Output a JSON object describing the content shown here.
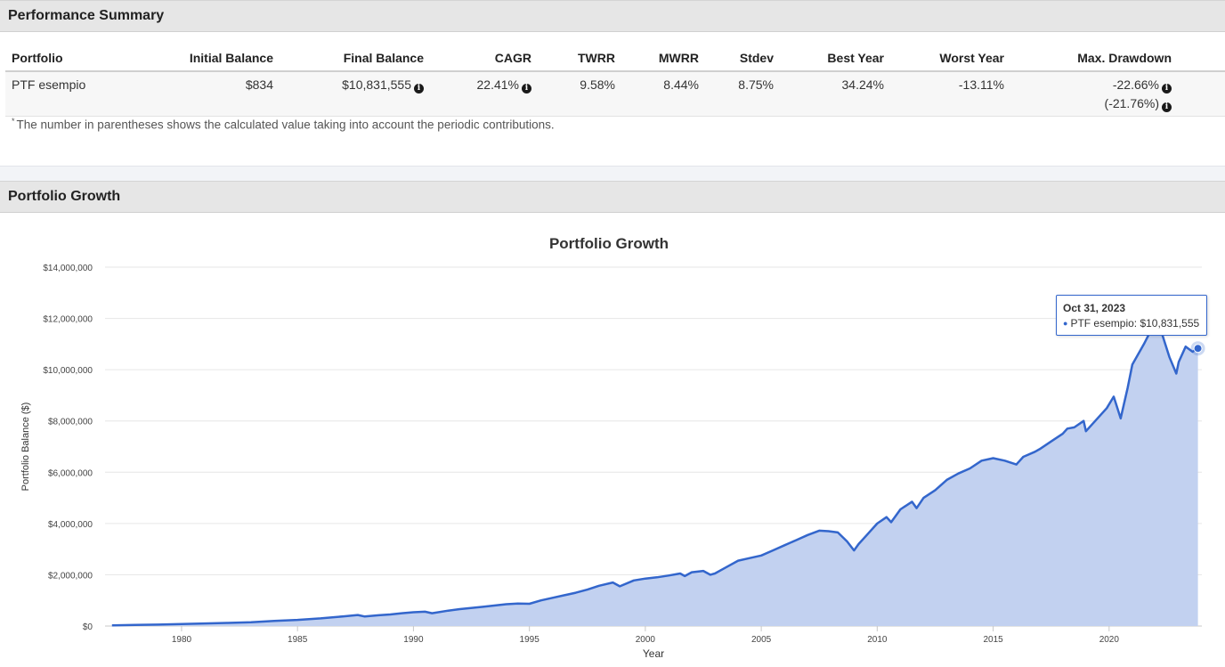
{
  "performance_summary": {
    "title": "Performance Summary",
    "columns": [
      "Portfolio",
      "Initial Balance",
      "Final Balance",
      "CAGR",
      "TWRR",
      "MWRR",
      "Stdev",
      "Best Year",
      "Worst Year",
      "Max. Drawdown"
    ],
    "row": {
      "portfolio": "PTF esempio",
      "initial_balance": "$834",
      "final_balance": "$10,831,555",
      "cagr": "22.41%",
      "twrr": "9.58%",
      "mwrr": "8.44%",
      "stdev": "8.75%",
      "best_year": "34.24%",
      "worst_year": "-13.11%",
      "max_drawdown": "-22.66%",
      "max_drawdown_alt": "(-21.76%)"
    },
    "footnote_mark": "*",
    "footnote": "The number in parentheses shows the calculated value taking into account the periodic contributions.",
    "info_icon": "info-circle-icon"
  },
  "portfolio_growth": {
    "title": "Portfolio Growth"
  },
  "chart_data": {
    "type": "area",
    "title": "Portfolio Growth",
    "xlabel": "Year",
    "ylabel": "Portfolio Balance ($)",
    "xlim": [
      1976.7,
      1924.0
    ],
    "x_ticks": [
      1980,
      1985,
      1990,
      1995,
      2000,
      2005,
      2010,
      2015,
      2020
    ],
    "ylim": [
      0,
      14000000
    ],
    "y_ticks": [
      0,
      2000000,
      4000000,
      6000000,
      8000000,
      10000000,
      12000000,
      14000000
    ],
    "y_tick_labels": [
      "$0",
      "$2,000,000",
      "$4,000,000",
      "$6,000,000",
      "$8,000,000",
      "$10,000,000",
      "$12,000,000",
      "$14,000,000"
    ],
    "grid": true,
    "legend": "none",
    "series": [
      {
        "name": "PTF esempio",
        "color": "#3366cc",
        "fill": "#c2d1f0",
        "x": [
          1977.0,
          1978.0,
          1979.0,
          1980.0,
          1981.0,
          1982.0,
          1983.0,
          1984.0,
          1985.0,
          1986.0,
          1987.0,
          1987.6,
          1987.9,
          1988.5,
          1989.0,
          1989.5,
          1990.0,
          1990.5,
          1990.8,
          1991.5,
          1992.0,
          1993.0,
          1994.0,
          1994.5,
          1995.0,
          1995.5,
          1996.0,
          1997.0,
          1997.5,
          1998.0,
          1998.6,
          1998.9,
          1999.5,
          2000.0,
          2000.5,
          2001.0,
          2001.5,
          2001.7,
          2002.0,
          2002.5,
          2002.8,
          2003.0,
          2003.5,
          2004.0,
          2004.5,
          2005.0,
          2005.5,
          2006.0,
          2006.5,
          2007.0,
          2007.5,
          2007.9,
          2008.3,
          2008.7,
          2009.0,
          2009.2,
          2009.5,
          2010.0,
          2010.4,
          2010.6,
          2011.0,
          2011.5,
          2011.7,
          2012.0,
          2012.5,
          2013.0,
          2013.5,
          2014.0,
          2014.5,
          2015.0,
          2015.5,
          2016.0,
          2016.3,
          2016.8,
          2017.0,
          2017.5,
          2018.0,
          2018.2,
          2018.5,
          2018.9,
          2019.0,
          2019.5,
          2019.9,
          2020.2,
          2020.5,
          2020.8,
          2021.0,
          2021.5,
          2021.9,
          2022.3,
          2022.6,
          2022.9,
          2023.0,
          2023.3,
          2023.6,
          2023.83
        ],
        "values": [
          25000,
          40000,
          55000,
          75000,
          100000,
          120000,
          150000,
          200000,
          240000,
          300000,
          380000,
          430000,
          370000,
          420000,
          450000,
          500000,
          540000,
          560000,
          500000,
          600000,
          660000,
          750000,
          850000,
          880000,
          870000,
          1000000,
          1100000,
          1300000,
          1420000,
          1570000,
          1700000,
          1550000,
          1780000,
          1850000,
          1900000,
          1970000,
          2050000,
          1950000,
          2100000,
          2150000,
          2000000,
          2050000,
          2300000,
          2550000,
          2650000,
          2750000,
          2950000,
          3150000,
          3350000,
          3550000,
          3720000,
          3700000,
          3650000,
          3300000,
          2950000,
          3200000,
          3500000,
          4000000,
          4250000,
          4050000,
          4550000,
          4850000,
          4600000,
          5000000,
          5300000,
          5700000,
          5950000,
          6150000,
          6450000,
          6550000,
          6450000,
          6300000,
          6600000,
          6800000,
          6900000,
          7200000,
          7500000,
          7700000,
          7750000,
          8000000,
          7600000,
          8100000,
          8500000,
          8950000,
          8100000,
          9300000,
          10200000,
          11000000,
          11700000,
          11350000,
          10500000,
          9850000,
          10300000,
          10900000,
          10700000,
          10831555
        ]
      }
    ],
    "highlight": {
      "date": "Oct 31, 2023",
      "label": "PTF esempio: $10,831,555",
      "x": 2023.83,
      "y": 10831555
    }
  }
}
